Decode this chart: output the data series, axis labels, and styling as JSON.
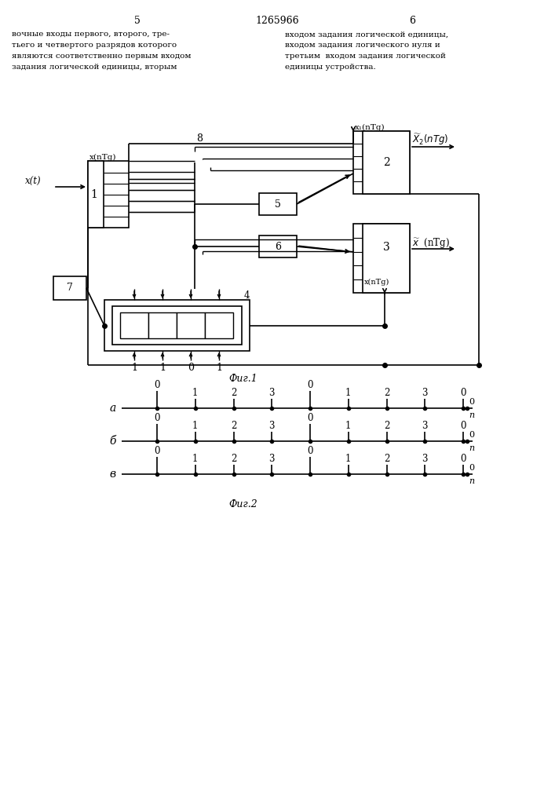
{
  "bg_color": "#ffffff",
  "page_num_left": "5",
  "page_num_right": "6",
  "patent_num": "1265966",
  "header_left": [
    "вочные входы первого, второго, тре-",
    "тьего и четвертого разрядов которого",
    "являются соответственно первым входом",
    "задания логической единицы, вторым"
  ],
  "header_right": [
    "входом задания логической единицы,",
    "входом задания логического нуля и",
    "третьим  входом задания логической",
    "единицы устройства."
  ],
  "fig1_caption": "Фиг.1",
  "fig2_caption": "Фиг.2",
  "b4_labels": [
    "1",
    "1",
    "0",
    "1"
  ],
  "row_labels": [
    "а",
    "б",
    "в"
  ],
  "tick_labels": [
    "0",
    "1",
    "2",
    "3",
    "0",
    "1",
    "2",
    "3",
    "0"
  ]
}
